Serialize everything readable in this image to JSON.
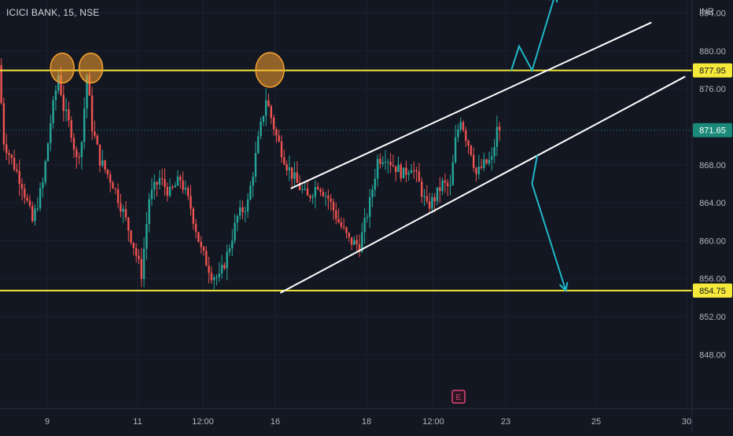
{
  "header": {
    "symbol_label": "ICICI BANK, 15, NSE",
    "currency": "INR"
  },
  "colors": {
    "background": "#131722",
    "grid": "#1c2030",
    "up": "#26a69a",
    "down": "#ef5350",
    "level_line": "#f5e93a",
    "trend_line": "#ffffff",
    "projection_arrow": "#1fb7c8",
    "highlight_circle": "#f7a130",
    "current_price": "#1b8a7a",
    "axis_text": "#b2b5be"
  },
  "chart_data": {
    "type": "candlestick",
    "title": "ICICI BANK, 15, NSE",
    "ylabel": "INR",
    "y_ticks": [
      848.0,
      852.0,
      856.0,
      860.0,
      864.0,
      868.0,
      871.65,
      876.0,
      880.0,
      884.0
    ],
    "ylim": [
      845.5,
      888.5
    ],
    "x_ticks": [
      "9",
      "11",
      "12:00",
      "16",
      "18",
      "12:00",
      "23",
      "25",
      "30"
    ],
    "resistance_level": {
      "value": 877.95,
      "label": "877.95"
    },
    "support_level": {
      "value": 854.75,
      "label": "854.75"
    },
    "current_price": {
      "value": 871.65,
      "label": "871.65"
    },
    "price_path": [
      {
        "bar": 0,
        "price": 878.5
      },
      {
        "bar": 2,
        "price": 870.5
      },
      {
        "bar": 5,
        "price": 868.5
      },
      {
        "bar": 9,
        "price": 866.0
      },
      {
        "bar": 13,
        "price": 862.0
      },
      {
        "bar": 17,
        "price": 866.0
      },
      {
        "bar": 20,
        "price": 872.5
      },
      {
        "bar": 23,
        "price": 877.5
      },
      {
        "bar": 25,
        "price": 874.0
      },
      {
        "bar": 28,
        "price": 871.5
      },
      {
        "bar": 30,
        "price": 868.5
      },
      {
        "bar": 32,
        "price": 870.5
      },
      {
        "bar": 34,
        "price": 877.5
      },
      {
        "bar": 36,
        "price": 872.0
      },
      {
        "bar": 39,
        "price": 868.5
      },
      {
        "bar": 44,
        "price": 866.0
      },
      {
        "bar": 48,
        "price": 863.0
      },
      {
        "bar": 52,
        "price": 859.5
      },
      {
        "bar": 55,
        "price": 856.5
      },
      {
        "bar": 58,
        "price": 864.5
      },
      {
        "bar": 62,
        "price": 866.5
      },
      {
        "bar": 66,
        "price": 865.0
      },
      {
        "bar": 70,
        "price": 866.5
      },
      {
        "bar": 74,
        "price": 863.5
      },
      {
        "bar": 78,
        "price": 859.0
      },
      {
        "bar": 82,
        "price": 856.5
      },
      {
        "bar": 85,
        "price": 856.0
      },
      {
        "bar": 88,
        "price": 858.5
      },
      {
        "bar": 92,
        "price": 862.5
      },
      {
        "bar": 96,
        "price": 864.0
      },
      {
        "bar": 100,
        "price": 870.5
      },
      {
        "bar": 103,
        "price": 875.0
      },
      {
        "bar": 107,
        "price": 871.0
      },
      {
        "bar": 111,
        "price": 868.0
      },
      {
        "bar": 115,
        "price": 866.0
      },
      {
        "bar": 119,
        "price": 864.5
      },
      {
        "bar": 123,
        "price": 866.0
      },
      {
        "bar": 127,
        "price": 864.5
      },
      {
        "bar": 131,
        "price": 862.0
      },
      {
        "bar": 135,
        "price": 860.0
      },
      {
        "bar": 139,
        "price": 859.5
      },
      {
        "bar": 143,
        "price": 864.0
      },
      {
        "bar": 146,
        "price": 868.5
      },
      {
        "bar": 149,
        "price": 869.0
      },
      {
        "bar": 152,
        "price": 868.0
      },
      {
        "bar": 156,
        "price": 867.0
      },
      {
        "bar": 159,
        "price": 868.0
      },
      {
        "bar": 162,
        "price": 866.0
      },
      {
        "bar": 165,
        "price": 863.5
      },
      {
        "bar": 168,
        "price": 864.5
      },
      {
        "bar": 171,
        "price": 866.0
      },
      {
        "bar": 174,
        "price": 865.5
      },
      {
        "bar": 176,
        "price": 870.5
      },
      {
        "bar": 178,
        "price": 873.0
      },
      {
        "bar": 180,
        "price": 871.0
      },
      {
        "bar": 182,
        "price": 869.5
      },
      {
        "bar": 184,
        "price": 867.0
      },
      {
        "bar": 187,
        "price": 868.0
      },
      {
        "bar": 190,
        "price": 868.5
      },
      {
        "bar": 192,
        "price": 871.65
      }
    ],
    "trend_lines": [
      {
        "name": "channel-upper",
        "from": {
          "bar": 112,
          "price": 865.5
        },
        "to": {
          "bar": 251,
          "price": 883.0
        }
      },
      {
        "name": "channel-lower",
        "from": {
          "bar": 108,
          "price": 854.5
        },
        "to": {
          "bar": 264,
          "price": 877.3
        }
      }
    ],
    "projection_arrows": [
      {
        "name": "breakout-up-arrow",
        "points": [
          {
            "bar": 197,
            "price": 877.95
          },
          {
            "bar": 200,
            "price": 880.5
          },
          {
            "bar": 205,
            "price": 877.95
          },
          {
            "bar": 214,
            "price": 886.0
          }
        ]
      },
      {
        "name": "breakdown-down-arrow",
        "points": [
          {
            "bar": 207,
            "price": 869.0
          },
          {
            "bar": 205,
            "price": 866.0
          },
          {
            "bar": 218,
            "price": 854.75
          }
        ]
      }
    ],
    "highlight_circles": [
      {
        "bar": 24,
        "price": 878.2
      },
      {
        "bar": 35,
        "price": 878.2
      },
      {
        "bar": 104,
        "price": 878.0
      }
    ],
    "event_marker": {
      "label": "E",
      "bar": 175
    }
  }
}
